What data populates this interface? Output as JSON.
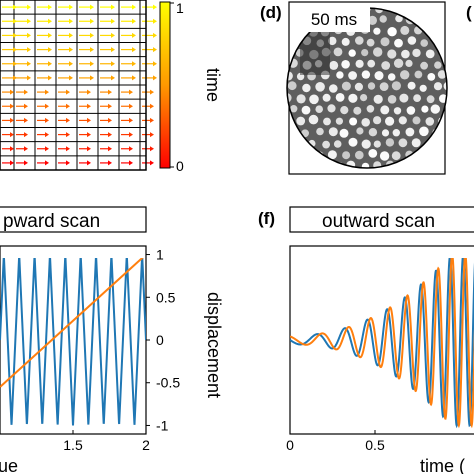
{
  "panels": {
    "d": {
      "letter": "(d)",
      "timestamp": "50 ms",
      "cutoff_letter": "("
    },
    "e": {
      "title": "pward scan"
    },
    "f": {
      "letter": "(f)",
      "title": "outward scan"
    }
  },
  "colorbar": {
    "label": "time",
    "tick_top": "1",
    "tick_bottom": "0",
    "colors": [
      "#ffff00",
      "#ff9900",
      "#ff0000"
    ]
  },
  "chart_data": [
    {
      "type": "line",
      "panel": "e",
      "xlim": [
        1.0,
        2.0
      ],
      "ylim": [
        -1.1,
        1.1
      ],
      "xticks": [
        "1.5",
        "2"
      ],
      "yticks": [
        "1",
        "0.5",
        "0",
        "-0.5",
        "-1"
      ],
      "xlabel": "ue",
      "ylabel": "displacement",
      "series": [
        {
          "color": "#1f77b4",
          "kind": "triangle",
          "periods": 9.5,
          "amplitude": 1.0
        },
        {
          "color": "#ff7f0e",
          "kind": "ramp",
          "x_start": 1.0,
          "y_start": -0.55,
          "x_end": 2.0,
          "y_end": 1.0
        }
      ]
    },
    {
      "type": "line",
      "panel": "f",
      "xlim": [
        0,
        1.0
      ],
      "ylim": [
        -1.1,
        1.1
      ],
      "xticks": [
        "0",
        "0.5"
      ],
      "xlabel": "time (",
      "ylabel": "",
      "series": [
        {
          "color": "#1f77b4",
          "kind": "chirp",
          "phase": 0.0
        },
        {
          "color": "#ff7f0e",
          "kind": "chirp",
          "phase": -1.0
        }
      ]
    }
  ]
}
